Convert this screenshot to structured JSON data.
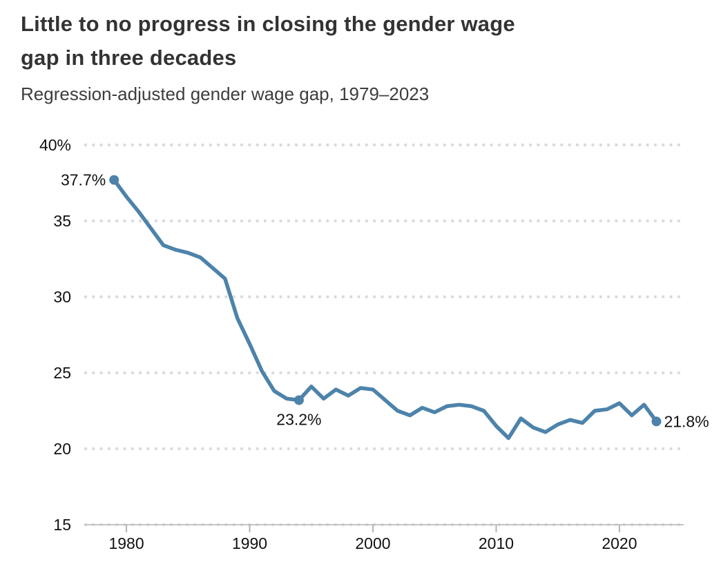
{
  "header": {
    "title_line1": "Little to no progress in closing the gender wage",
    "title_line2": "gap in three decades",
    "subtitle": "Regression-adjusted gender wage gap, 1979–2023"
  },
  "colors": {
    "line": "#4d83aa",
    "dot": "#4d83aa",
    "gridline": "#dcdcdc",
    "axis": "#c4c4c4",
    "tick": "#b3b3b3",
    "axis_text": "#111111",
    "title_text": "#333333",
    "subtitle_text": "#3d3d3d"
  },
  "chart_data": {
    "type": "line",
    "title": "Little to no progress in closing the gender wage gap in three decades",
    "subtitle": "Regression-adjusted gender wage gap, 1979–2023",
    "series_name": "Regression-adjusted gender wage gap (%)",
    "x": [
      1979,
      1980,
      1981,
      1982,
      1983,
      1984,
      1985,
      1986,
      1987,
      1988,
      1989,
      1990,
      1991,
      1992,
      1993,
      1994,
      1995,
      1996,
      1997,
      1998,
      1999,
      2000,
      2001,
      2002,
      2003,
      2004,
      2005,
      2006,
      2007,
      2008,
      2009,
      2010,
      2011,
      2012,
      2013,
      2014,
      2015,
      2016,
      2017,
      2018,
      2019,
      2020,
      2021,
      2022,
      2023
    ],
    "values": [
      37.7,
      36.6,
      35.6,
      34.5,
      33.4,
      33.1,
      32.9,
      32.6,
      31.9,
      31.2,
      28.6,
      26.9,
      25.1,
      23.8,
      23.3,
      23.2,
      24.1,
      23.3,
      23.9,
      23.5,
      24.0,
      23.9,
      23.2,
      22.5,
      22.2,
      22.7,
      22.4,
      22.8,
      22.9,
      22.8,
      22.5,
      21.5,
      20.7,
      22.0,
      21.4,
      21.1,
      21.6,
      21.9,
      21.7,
      22.5,
      22.6,
      23.0,
      22.2,
      22.9,
      21.8
    ],
    "xlim": [
      1979,
      2023
    ],
    "ylim": [
      15,
      40
    ],
    "grid": "horizontal-dotted",
    "legend": "none",
    "yticks": [
      {
        "value": 40,
        "label": "40%"
      },
      {
        "value": 35,
        "label": "35"
      },
      {
        "value": 30,
        "label": "30"
      },
      {
        "value": 25,
        "label": "25"
      },
      {
        "value": 20,
        "label": "20"
      },
      {
        "value": 15,
        "label": "15"
      }
    ],
    "xticks": [
      {
        "value": 1980,
        "label": "1980"
      },
      {
        "value": 1990,
        "label": "1990"
      },
      {
        "value": 2000,
        "label": "2000"
      },
      {
        "value": 2010,
        "label": "2010"
      },
      {
        "value": 2020,
        "label": "2020"
      }
    ],
    "annotations": [
      {
        "year": 1979,
        "value": 37.7,
        "label": "37.7%",
        "position": "left"
      },
      {
        "year": 1994,
        "value": 23.2,
        "label": "23.2%",
        "position": "below"
      },
      {
        "year": 2023,
        "value": 21.8,
        "label": "21.8%",
        "position": "right"
      }
    ]
  }
}
